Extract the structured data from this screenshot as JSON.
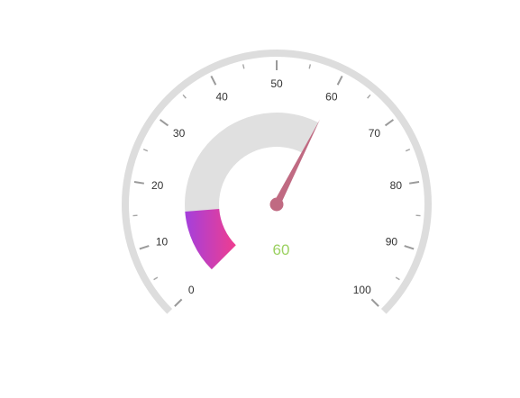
{
  "chart_data": {
    "type": "gauge",
    "value": 60,
    "value_label": "60",
    "min": 0,
    "max": 100,
    "major_ticks": [
      0,
      10,
      20,
      30,
      40,
      50,
      60,
      70,
      80,
      90,
      100
    ],
    "minor_ticks": [
      5,
      15,
      25,
      35,
      45,
      55,
      65,
      75,
      85,
      95
    ],
    "tick_labels": [
      "0",
      "10",
      "20",
      "30",
      "40",
      "50",
      "60",
      "70",
      "80",
      "90",
      "100"
    ],
    "range_band": {
      "from": 0,
      "to": 60
    },
    "colored_segment": {
      "from": 0,
      "to": 15
    },
    "colors": {
      "outer_arc": "#dddddd",
      "band_track": "#e0e0e0",
      "segment_start": "#a43fdc",
      "segment_end": "#ef3d8f",
      "needle": "#c06a82",
      "value_text": "#9cd162",
      "major_tick": "#9a9a9a",
      "minor_tick": "#a5a5a5",
      "label_text": "#333333"
    }
  }
}
